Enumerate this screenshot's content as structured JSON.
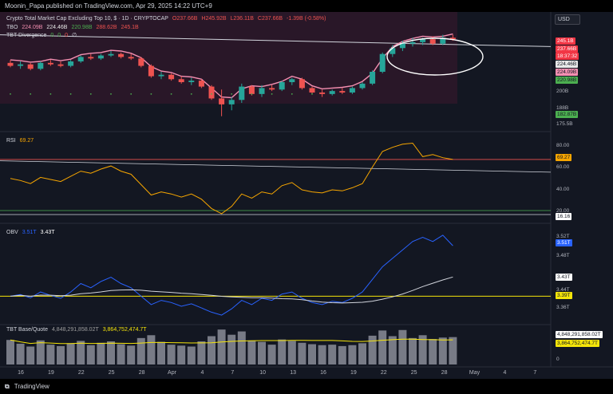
{
  "header": {
    "text": "Moonin_Papa published on TradingView.com, Apr 29, 2025 14:22 UTC+9"
  },
  "footer": {
    "brand": "TradingView",
    "logo_icon": "tradingview-logo-icon"
  },
  "currency_button": "USD",
  "main_pane": {
    "title": "Crypto Total Market Cap Excluding Top 10, $ · 1D · CRYPTOCAP",
    "ohlc": [
      "O237.66B",
      "H245.92B",
      "L236.11B",
      "C237.66B",
      "-1.39B (-0.58%)"
    ],
    "tbo_label": "TBO",
    "tbo_values": [
      "224.09B",
      "224.46B",
      "220.98B",
      "288.62B",
      "245.1B"
    ],
    "tbo_div_label": "TBT Divergence",
    "tbo_div_values": [
      "0",
      "0",
      "0",
      "∅"
    ],
    "axis_ticks": [
      "200B",
      "188B",
      "175.5B"
    ],
    "price_tags": [
      {
        "text": "245.1B",
        "bg": "#f23645",
        "fg": "#ffffff"
      },
      {
        "text": "237.66B",
        "bg": "#f23645",
        "fg": "#ffffff"
      },
      {
        "text": "18:37:32",
        "bg": "#f23645",
        "fg": "#ffffff"
      },
      {
        "text": "224.46B",
        "bg": "#e8e8e8",
        "fg": "#131722"
      },
      {
        "text": "224.09B",
        "bg": "#f48fb1",
        "fg": "#131722"
      },
      {
        "text": "220.98B",
        "bg": "#4caf50",
        "fg": "#131722"
      },
      {
        "text": "182.87B",
        "bg": "#4caf50",
        "fg": "#131722"
      }
    ]
  },
  "rsi_pane": {
    "label": "RSI",
    "value": "69.27",
    "axis_ticks": [
      "80.00",
      "60.00",
      "40.00",
      "20.00"
    ],
    "tags": [
      {
        "text": "69.27",
        "bg": "#f7a600",
        "fg": "#131722"
      },
      {
        "text": "16.16",
        "bg": "#ffffff",
        "fg": "#131722"
      }
    ]
  },
  "obv_pane": {
    "label": "OBV",
    "value1": "3.51T",
    "value2": "3.43T",
    "axis_ticks": [
      "3.52T",
      "3.48T",
      "3.44T",
      "3.36T"
    ],
    "tags": [
      {
        "text": "3.51T",
        "bg": "#2962ff",
        "fg": "#ffffff"
      },
      {
        "text": "3.43T",
        "bg": "#ffffff",
        "fg": "#131722"
      },
      {
        "text": "3.39T",
        "bg": "#f5e50a",
        "fg": "#131722"
      }
    ]
  },
  "vol_pane": {
    "label": "TBT Base/Quote",
    "value1": "4,848,291,858.02T",
    "value2": "3,864,752,474.7T",
    "axis_ticks": [
      "0"
    ],
    "tags": [
      {
        "text": "4,848,291,858.02T",
        "bg": "#ffffff",
        "fg": "#131722"
      },
      {
        "text": "3,864,752,474.7T",
        "bg": "#f5e50a",
        "fg": "#131722"
      }
    ]
  },
  "x_axis": [
    "16",
    "19",
    "22",
    "25",
    "28",
    "Apr",
    "4",
    "7",
    "10",
    "13",
    "16",
    "19",
    "22",
    "25",
    "28",
    "May",
    "4",
    "7"
  ],
  "chart_data": {
    "type": "candlestick",
    "up_color": "#26a69a",
    "down_color": "#ef5350",
    "candles": [
      {
        "o": 221,
        "h": 223,
        "l": 218,
        "c": 219
      },
      {
        "o": 219,
        "h": 222,
        "l": 217,
        "c": 220
      },
      {
        "o": 220,
        "h": 221,
        "l": 216,
        "c": 217
      },
      {
        "o": 217,
        "h": 222,
        "l": 216,
        "c": 221
      },
      {
        "o": 221,
        "h": 223,
        "l": 219,
        "c": 220
      },
      {
        "o": 220,
        "h": 222,
        "l": 218,
        "c": 219
      },
      {
        "o": 219,
        "h": 223,
        "l": 218,
        "c": 222
      },
      {
        "o": 222,
        "h": 226,
        "l": 221,
        "c": 225
      },
      {
        "o": 225,
        "h": 227,
        "l": 223,
        "c": 224
      },
      {
        "o": 224,
        "h": 227,
        "l": 223,
        "c": 226
      },
      {
        "o": 226,
        "h": 229,
        "l": 225,
        "c": 227
      },
      {
        "o": 227,
        "h": 228,
        "l": 224,
        "c": 225
      },
      {
        "o": 225,
        "h": 227,
        "l": 223,
        "c": 224
      },
      {
        "o": 224,
        "h": 225,
        "l": 218,
        "c": 219
      },
      {
        "o": 219,
        "h": 220,
        "l": 211,
        "c": 212
      },
      {
        "o": 212,
        "h": 215,
        "l": 210,
        "c": 213
      },
      {
        "o": 213,
        "h": 214,
        "l": 209,
        "c": 210
      },
      {
        "o": 210,
        "h": 212,
        "l": 207,
        "c": 208
      },
      {
        "o": 208,
        "h": 211,
        "l": 206,
        "c": 209
      },
      {
        "o": 209,
        "h": 210,
        "l": 204,
        "c": 205
      },
      {
        "o": 205,
        "h": 206,
        "l": 196,
        "c": 197
      },
      {
        "o": 197,
        "h": 203,
        "l": 185,
        "c": 193
      },
      {
        "o": 193,
        "h": 198,
        "l": 189,
        "c": 196
      },
      {
        "o": 196,
        "h": 207,
        "l": 194,
        "c": 205
      },
      {
        "o": 205,
        "h": 206,
        "l": 199,
        "c": 200
      },
      {
        "o": 200,
        "h": 206,
        "l": 198,
        "c": 204
      },
      {
        "o": 204,
        "h": 206,
        "l": 202,
        "c": 203
      },
      {
        "o": 203,
        "h": 209,
        "l": 202,
        "c": 208
      },
      {
        "o": 208,
        "h": 211,
        "l": 206,
        "c": 210
      },
      {
        "o": 210,
        "h": 211,
        "l": 203,
        "c": 204
      },
      {
        "o": 204,
        "h": 205,
        "l": 200,
        "c": 201
      },
      {
        "o": 201,
        "h": 203,
        "l": 198,
        "c": 200
      },
      {
        "o": 200,
        "h": 203,
        "l": 199,
        "c": 202
      },
      {
        "o": 202,
        "h": 204,
        "l": 200,
        "c": 201
      },
      {
        "o": 201,
        "h": 205,
        "l": 200,
        "c": 204
      },
      {
        "o": 204,
        "h": 208,
        "l": 203,
        "c": 207
      },
      {
        "o": 207,
        "h": 216,
        "l": 206,
        "c": 215
      },
      {
        "o": 215,
        "h": 228,
        "l": 214,
        "c": 227
      },
      {
        "o": 227,
        "h": 233,
        "l": 225,
        "c": 231
      },
      {
        "o": 231,
        "h": 236,
        "l": 229,
        "c": 234
      },
      {
        "o": 234,
        "h": 238,
        "l": 232,
        "c": 235
      },
      {
        "o": 235,
        "h": 238,
        "l": 233,
        "c": 237
      },
      {
        "o": 237,
        "h": 239,
        "l": 233,
        "c": 234
      },
      {
        "o": 234,
        "h": 240,
        "l": 233,
        "c": 238
      },
      {
        "o": 238,
        "h": 240,
        "l": 236,
        "c": 237
      }
    ],
    "rsi": [
      51,
      49,
      46,
      52,
      50,
      48,
      53,
      58,
      56,
      60,
      63,
      58,
      55,
      45,
      35,
      38,
      36,
      33,
      36,
      31,
      22,
      17,
      24,
      36,
      32,
      38,
      36,
      44,
      47,
      40,
      38,
      37,
      40,
      39,
      42,
      46,
      62,
      77,
      81,
      84,
      85,
      72,
      74,
      71,
      69.27
    ],
    "obv": [
      3.39,
      3.394,
      3.386,
      3.4,
      3.392,
      3.385,
      3.4,
      3.42,
      3.41,
      3.425,
      3.435,
      3.42,
      3.41,
      3.39,
      3.37,
      3.38,
      3.375,
      3.366,
      3.372,
      3.362,
      3.352,
      3.345,
      3.36,
      3.38,
      3.37,
      3.385,
      3.38,
      3.395,
      3.4,
      3.385,
      3.375,
      3.37,
      3.378,
      3.375,
      3.385,
      3.4,
      3.43,
      3.46,
      3.48,
      3.5,
      3.52,
      3.53,
      3.52,
      3.535,
      3.51
    ],
    "volume": [
      5.2,
      4.4,
      3.8,
      5.1,
      4.2,
      3.9,
      4.5,
      5.0,
      4.1,
      4.6,
      4.9,
      4.3,
      4.0,
      5.6,
      6.2,
      4.8,
      4.2,
      4.0,
      3.8,
      4.9,
      6.0,
      7.4,
      6.3,
      7.0,
      5.1,
      4.8,
      4.2,
      5.3,
      5.0,
      4.6,
      4.3,
      4.1,
      4.2,
      3.9,
      4.1,
      4.5,
      6.1,
      7.2,
      6.0,
      7.3,
      5.6,
      6.2,
      5.4,
      5.7,
      5.8
    ]
  }
}
